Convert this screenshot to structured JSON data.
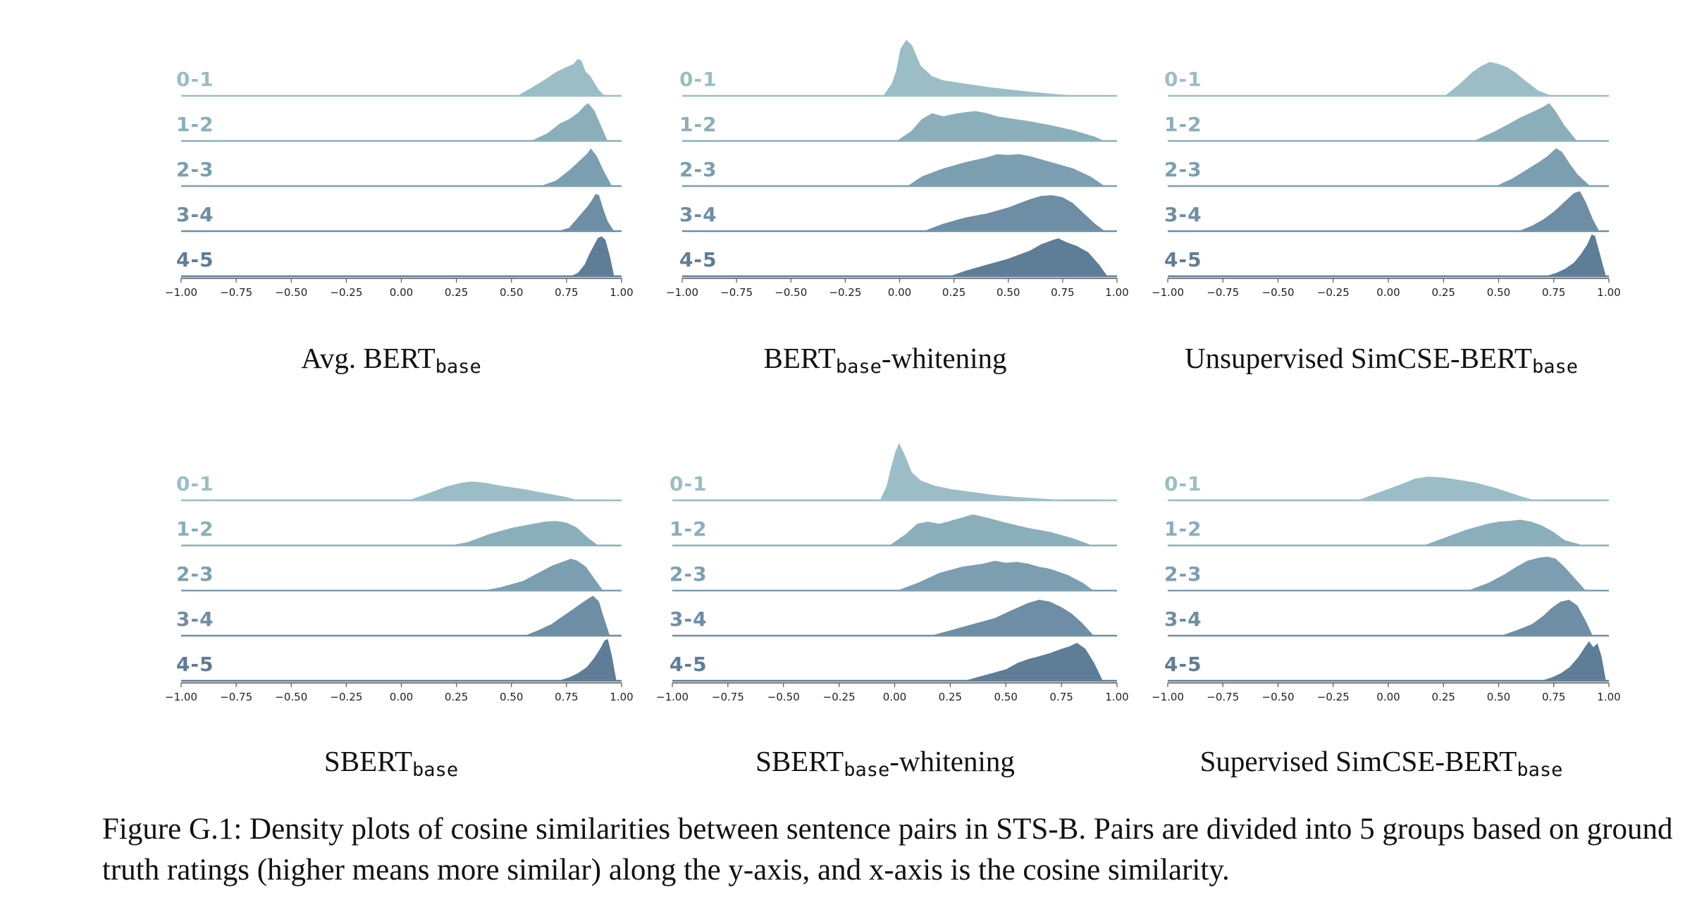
{
  "figure": {
    "caption": "Figure G.1: Density plots of cosine similarities between sentence pairs in STS-B. Pairs are divided into 5 groups based on ground truth ratings (higher means more similar) along the y-axis, and x-axis is the cosine similarity.",
    "colors": {
      "ridges": [
        "#9bbec6",
        "#8aafba",
        "#7b9fb0",
        "#6d8ea4",
        "#5e7d96"
      ],
      "outline": "#ffffff",
      "axis": "#555555"
    }
  },
  "chart_data": [
    {
      "type": "area",
      "kind": "ridgeline",
      "title": "Avg. BERT",
      "title_subscript": "base",
      "title_suffix": "",
      "xlabel": "",
      "ylabel": "",
      "xlim": [
        -1.0,
        1.0
      ],
      "x_ticks": [
        "−1.00",
        "−0.75",
        "−0.50",
        "−0.25",
        "0.00",
        "0.25",
        "0.50",
        "0.75",
        "1.00"
      ],
      "x_tick_values": [
        -1.0,
        -0.75,
        -0.5,
        -0.25,
        0.0,
        0.25,
        0.5,
        0.75,
        1.0
      ],
      "series": [
        {
          "name": "0-1",
          "x": [
            0.52,
            0.6,
            0.66,
            0.7,
            0.74,
            0.78,
            0.8,
            0.82,
            0.84,
            0.86,
            0.9,
            0.93
          ],
          "y": [
            0.0,
            0.25,
            0.45,
            0.6,
            0.7,
            0.8,
            0.93,
            0.88,
            0.6,
            0.5,
            0.15,
            0.0
          ]
        },
        {
          "name": "1-2",
          "x": [
            0.58,
            0.66,
            0.72,
            0.76,
            0.8,
            0.83,
            0.85,
            0.88,
            0.9,
            0.94
          ],
          "y": [
            0.0,
            0.2,
            0.45,
            0.55,
            0.7,
            0.88,
            0.95,
            0.75,
            0.5,
            0.0
          ]
        },
        {
          "name": "2-3",
          "x": [
            0.62,
            0.7,
            0.76,
            0.8,
            0.84,
            0.86,
            0.89,
            0.92,
            0.96
          ],
          "y": [
            0.0,
            0.15,
            0.4,
            0.6,
            0.8,
            0.95,
            0.75,
            0.4,
            0.0
          ]
        },
        {
          "name": "3-4",
          "x": [
            0.7,
            0.76,
            0.8,
            0.84,
            0.86,
            0.88,
            0.9,
            0.92,
            0.94,
            0.97
          ],
          "y": [
            0.0,
            0.1,
            0.35,
            0.6,
            0.75,
            0.93,
            0.9,
            0.55,
            0.25,
            0.0
          ]
        },
        {
          "name": "4-5",
          "x": [
            0.76,
            0.8,
            0.83,
            0.85,
            0.87,
            0.89,
            0.91,
            0.93,
            0.95,
            0.97
          ],
          "y": [
            0.0,
            0.1,
            0.3,
            0.55,
            0.75,
            0.95,
            1.0,
            0.9,
            0.5,
            0.0
          ]
        }
      ]
    },
    {
      "type": "area",
      "kind": "ridgeline",
      "title": "BERT",
      "title_subscript": "base",
      "title_suffix": "-whitening",
      "xlabel": "",
      "ylabel": "",
      "xlim": [
        -1.0,
        1.0
      ],
      "x_ticks": [
        "−1.00",
        "−0.75",
        "−0.50",
        "−0.25",
        "0.00",
        "0.25",
        "0.50",
        "0.75",
        "1.00"
      ],
      "x_tick_values": [
        -1.0,
        -0.75,
        -0.5,
        -0.25,
        0.0,
        0.25,
        0.5,
        0.75,
        1.0
      ],
      "series": [
        {
          "name": "0-1",
          "x": [
            -0.08,
            -0.04,
            -0.02,
            0.0,
            0.03,
            0.06,
            0.1,
            0.15,
            0.2,
            0.3,
            0.4,
            0.5,
            0.6,
            0.75,
            0.9
          ],
          "y": [
            0.0,
            0.3,
            0.6,
            1.15,
            1.4,
            1.25,
            0.75,
            0.5,
            0.4,
            0.32,
            0.24,
            0.18,
            0.12,
            0.05,
            0.0
          ]
        },
        {
          "name": "1-2",
          "x": [
            -0.02,
            0.05,
            0.1,
            0.15,
            0.2,
            0.25,
            0.3,
            0.35,
            0.4,
            0.45,
            0.5,
            0.6,
            0.7,
            0.8,
            0.9,
            0.95
          ],
          "y": [
            0.0,
            0.25,
            0.55,
            0.7,
            0.62,
            0.68,
            0.72,
            0.75,
            0.7,
            0.62,
            0.58,
            0.5,
            0.4,
            0.28,
            0.12,
            0.0
          ]
        },
        {
          "name": "2-3",
          "x": [
            0.03,
            0.1,
            0.2,
            0.3,
            0.4,
            0.45,
            0.5,
            0.55,
            0.6,
            0.7,
            0.8,
            0.88,
            0.95
          ],
          "y": [
            0.0,
            0.25,
            0.45,
            0.6,
            0.72,
            0.8,
            0.78,
            0.8,
            0.75,
            0.6,
            0.45,
            0.25,
            0.0
          ]
        },
        {
          "name": "3-4",
          "x": [
            0.1,
            0.2,
            0.3,
            0.4,
            0.5,
            0.55,
            0.6,
            0.65,
            0.7,
            0.75,
            0.8,
            0.85,
            0.9,
            0.95
          ],
          "y": [
            0.0,
            0.2,
            0.35,
            0.45,
            0.6,
            0.7,
            0.8,
            0.88,
            0.9,
            0.85,
            0.7,
            0.45,
            0.2,
            0.0
          ]
        },
        {
          "name": "4-5",
          "x": [
            0.22,
            0.3,
            0.4,
            0.5,
            0.55,
            0.6,
            0.65,
            0.7,
            0.73,
            0.77,
            0.82,
            0.87,
            0.92,
            0.96
          ],
          "y": [
            0.0,
            0.15,
            0.3,
            0.45,
            0.55,
            0.65,
            0.8,
            0.9,
            0.95,
            0.85,
            0.75,
            0.6,
            0.3,
            0.0
          ]
        }
      ]
    },
    {
      "type": "area",
      "kind": "ridgeline",
      "title": "Unsupervised SimCSE-BERT",
      "title_subscript": "base",
      "title_suffix": "",
      "xlabel": "",
      "ylabel": "",
      "xlim": [
        -1.0,
        1.0
      ],
      "x_ticks": [
        "−1.00",
        "−0.75",
        "−0.50",
        "−0.25",
        "0.00",
        "0.25",
        "0.50",
        "0.75",
        "1.00"
      ],
      "x_tick_values": [
        -1.0,
        -0.75,
        -0.5,
        -0.25,
        0.0,
        0.25,
        0.5,
        0.75,
        1.0
      ],
      "series": [
        {
          "name": "0-1",
          "x": [
            0.25,
            0.32,
            0.38,
            0.42,
            0.46,
            0.5,
            0.54,
            0.58,
            0.62,
            0.68,
            0.75
          ],
          "y": [
            0.0,
            0.3,
            0.6,
            0.75,
            0.85,
            0.8,
            0.72,
            0.58,
            0.4,
            0.15,
            0.0
          ]
        },
        {
          "name": "1-2",
          "x": [
            0.38,
            0.48,
            0.55,
            0.6,
            0.65,
            0.7,
            0.73,
            0.76,
            0.8,
            0.86
          ],
          "y": [
            0.0,
            0.25,
            0.45,
            0.6,
            0.72,
            0.85,
            0.95,
            0.75,
            0.4,
            0.0
          ]
        },
        {
          "name": "2-3",
          "x": [
            0.48,
            0.56,
            0.62,
            0.68,
            0.72,
            0.76,
            0.79,
            0.82,
            0.86,
            0.92
          ],
          "y": [
            0.0,
            0.2,
            0.4,
            0.6,
            0.75,
            0.95,
            0.85,
            0.6,
            0.3,
            0.0
          ]
        },
        {
          "name": "3-4",
          "x": [
            0.58,
            0.65,
            0.7,
            0.75,
            0.8,
            0.84,
            0.87,
            0.9,
            0.93,
            0.96
          ],
          "y": [
            0.0,
            0.15,
            0.3,
            0.5,
            0.75,
            0.95,
            1.0,
            0.7,
            0.3,
            0.0
          ]
        },
        {
          "name": "4-5",
          "x": [
            0.7,
            0.76,
            0.8,
            0.84,
            0.87,
            0.9,
            0.92,
            0.94,
            0.96,
            0.99
          ],
          "y": [
            0.0,
            0.1,
            0.2,
            0.35,
            0.55,
            0.8,
            1.05,
            1.0,
            0.6,
            0.0
          ]
        }
      ]
    },
    {
      "type": "area",
      "kind": "ridgeline",
      "title": "SBERT",
      "title_subscript": "base",
      "title_suffix": "",
      "xlabel": "",
      "ylabel": "",
      "xlim": [
        -1.0,
        1.0
      ],
      "x_ticks": [
        "−1.00",
        "−0.75",
        "−0.50",
        "−0.25",
        "0.00",
        "0.25",
        "0.50",
        "0.75",
        "1.00"
      ],
      "x_tick_values": [
        -1.0,
        -0.75,
        -0.5,
        -0.25,
        0.0,
        0.25,
        0.5,
        0.75,
        1.0
      ],
      "series": [
        {
          "name": "0-1",
          "x": [
            0.02,
            0.1,
            0.2,
            0.27,
            0.32,
            0.38,
            0.45,
            0.55,
            0.65,
            0.75,
            0.82
          ],
          "y": [
            0.0,
            0.15,
            0.35,
            0.45,
            0.48,
            0.45,
            0.38,
            0.3,
            0.2,
            0.1,
            0.0
          ]
        },
        {
          "name": "1-2",
          "x": [
            0.2,
            0.3,
            0.4,
            0.5,
            0.6,
            0.65,
            0.7,
            0.75,
            0.8,
            0.85,
            0.9
          ],
          "y": [
            0.0,
            0.1,
            0.3,
            0.45,
            0.55,
            0.6,
            0.62,
            0.58,
            0.45,
            0.2,
            0.0
          ]
        },
        {
          "name": "2-3",
          "x": [
            0.35,
            0.45,
            0.55,
            0.62,
            0.68,
            0.73,
            0.77,
            0.8,
            0.84,
            0.88,
            0.92
          ],
          "y": [
            0.0,
            0.1,
            0.25,
            0.45,
            0.62,
            0.72,
            0.8,
            0.75,
            0.6,
            0.3,
            0.0
          ]
        },
        {
          "name": "3-4",
          "x": [
            0.55,
            0.62,
            0.68,
            0.72,
            0.76,
            0.8,
            0.84,
            0.87,
            0.9,
            0.92,
            0.95
          ],
          "y": [
            0.0,
            0.15,
            0.3,
            0.45,
            0.6,
            0.75,
            0.9,
            1.0,
            0.85,
            0.5,
            0.0
          ]
        },
        {
          "name": "4-5",
          "x": [
            0.7,
            0.76,
            0.8,
            0.84,
            0.87,
            0.9,
            0.92,
            0.94,
            0.96,
            0.98
          ],
          "y": [
            0.0,
            0.1,
            0.2,
            0.35,
            0.55,
            0.8,
            1.0,
            1.05,
            0.6,
            0.0
          ]
        }
      ]
    },
    {
      "type": "area",
      "kind": "ridgeline",
      "title": "SBERT",
      "title_subscript": "base",
      "title_suffix": "-whitening",
      "xlabel": "",
      "ylabel": "",
      "xlim": [
        -1.0,
        1.0
      ],
      "x_ticks": [
        "−1.00",
        "−0.75",
        "−0.50",
        "−0.25",
        "0.00",
        "0.25",
        "0.50",
        "0.75",
        "1.00"
      ],
      "x_tick_values": [
        -1.0,
        -0.75,
        -0.5,
        -0.25,
        0.0,
        0.25,
        0.5,
        0.75,
        1.0
      ],
      "series": [
        {
          "name": "0-1",
          "x": [
            -0.07,
            -0.04,
            -0.02,
            0.0,
            0.02,
            0.05,
            0.08,
            0.12,
            0.18,
            0.25,
            0.35,
            0.45,
            0.55,
            0.7,
            0.85
          ],
          "y": [
            0.0,
            0.35,
            0.8,
            1.2,
            1.45,
            1.1,
            0.7,
            0.5,
            0.38,
            0.3,
            0.22,
            0.15,
            0.1,
            0.05,
            0.0
          ]
        },
        {
          "name": "1-2",
          "x": [
            -0.03,
            0.05,
            0.1,
            0.15,
            0.2,
            0.25,
            0.3,
            0.35,
            0.4,
            0.45,
            0.5,
            0.6,
            0.7,
            0.8,
            0.9
          ],
          "y": [
            0.0,
            0.3,
            0.55,
            0.6,
            0.55,
            0.62,
            0.7,
            0.78,
            0.72,
            0.65,
            0.58,
            0.45,
            0.35,
            0.2,
            0.0
          ]
        },
        {
          "name": "2-3",
          "x": [
            0.0,
            0.1,
            0.2,
            0.3,
            0.4,
            0.45,
            0.5,
            0.55,
            0.6,
            0.65,
            0.7,
            0.78,
            0.85,
            0.9
          ],
          "y": [
            0.0,
            0.2,
            0.45,
            0.6,
            0.68,
            0.75,
            0.7,
            0.72,
            0.68,
            0.6,
            0.55,
            0.4,
            0.2,
            0.0
          ]
        },
        {
          "name": "3-4",
          "x": [
            0.15,
            0.25,
            0.35,
            0.45,
            0.5,
            0.55,
            0.6,
            0.65,
            0.7,
            0.75,
            0.8,
            0.85,
            0.9
          ],
          "y": [
            0.0,
            0.15,
            0.3,
            0.45,
            0.58,
            0.7,
            0.82,
            0.9,
            0.85,
            0.72,
            0.55,
            0.3,
            0.0
          ]
        },
        {
          "name": "4-5",
          "x": [
            0.3,
            0.4,
            0.5,
            0.55,
            0.6,
            0.65,
            0.7,
            0.75,
            0.78,
            0.82,
            0.86,
            0.9,
            0.94
          ],
          "y": [
            0.0,
            0.15,
            0.3,
            0.45,
            0.55,
            0.62,
            0.7,
            0.8,
            0.85,
            0.95,
            0.8,
            0.45,
            0.0
          ]
        }
      ]
    },
    {
      "type": "area",
      "kind": "ridgeline",
      "title": "Supervised SimCSE-BERT",
      "title_subscript": "base",
      "title_suffix": "",
      "xlabel": "",
      "ylabel": "",
      "xlim": [
        -1.0,
        1.0
      ],
      "x_ticks": [
        "−1.00",
        "−0.75",
        "−0.50",
        "−0.25",
        "0.00",
        "0.25",
        "0.50",
        "0.75",
        "1.00"
      ],
      "x_tick_values": [
        -1.0,
        -0.75,
        -0.5,
        -0.25,
        0.0,
        0.25,
        0.5,
        0.75,
        1.0
      ],
      "series": [
        {
          "name": "0-1",
          "x": [
            -0.15,
            -0.05,
            0.05,
            0.12,
            0.18,
            0.25,
            0.32,
            0.4,
            0.5,
            0.6,
            0.68
          ],
          "y": [
            0.0,
            0.2,
            0.4,
            0.55,
            0.6,
            0.58,
            0.52,
            0.45,
            0.3,
            0.12,
            0.0
          ]
        },
        {
          "name": "1-2",
          "x": [
            0.15,
            0.25,
            0.35,
            0.45,
            0.5,
            0.55,
            0.6,
            0.65,
            0.7,
            0.75,
            0.8,
            0.9
          ],
          "y": [
            0.0,
            0.2,
            0.4,
            0.55,
            0.6,
            0.62,
            0.65,
            0.6,
            0.5,
            0.35,
            0.15,
            0.0
          ]
        },
        {
          "name": "2-3",
          "x": [
            0.35,
            0.45,
            0.52,
            0.58,
            0.63,
            0.68,
            0.72,
            0.76,
            0.8,
            0.85,
            0.9
          ],
          "y": [
            0.0,
            0.2,
            0.4,
            0.6,
            0.75,
            0.82,
            0.85,
            0.8,
            0.6,
            0.3,
            0.0
          ]
        },
        {
          "name": "3-4",
          "x": [
            0.5,
            0.58,
            0.65,
            0.7,
            0.74,
            0.78,
            0.82,
            0.86,
            0.9,
            0.93
          ],
          "y": [
            0.0,
            0.15,
            0.3,
            0.5,
            0.7,
            0.85,
            0.9,
            0.75,
            0.35,
            0.0
          ]
        },
        {
          "name": "4-5",
          "x": [
            0.68,
            0.74,
            0.78,
            0.82,
            0.86,
            0.89,
            0.91,
            0.93,
            0.95,
            0.97,
            0.99
          ],
          "y": [
            0.0,
            0.1,
            0.2,
            0.35,
            0.6,
            0.85,
            1.0,
            0.85,
            0.95,
            0.6,
            0.0
          ]
        }
      ]
    }
  ]
}
